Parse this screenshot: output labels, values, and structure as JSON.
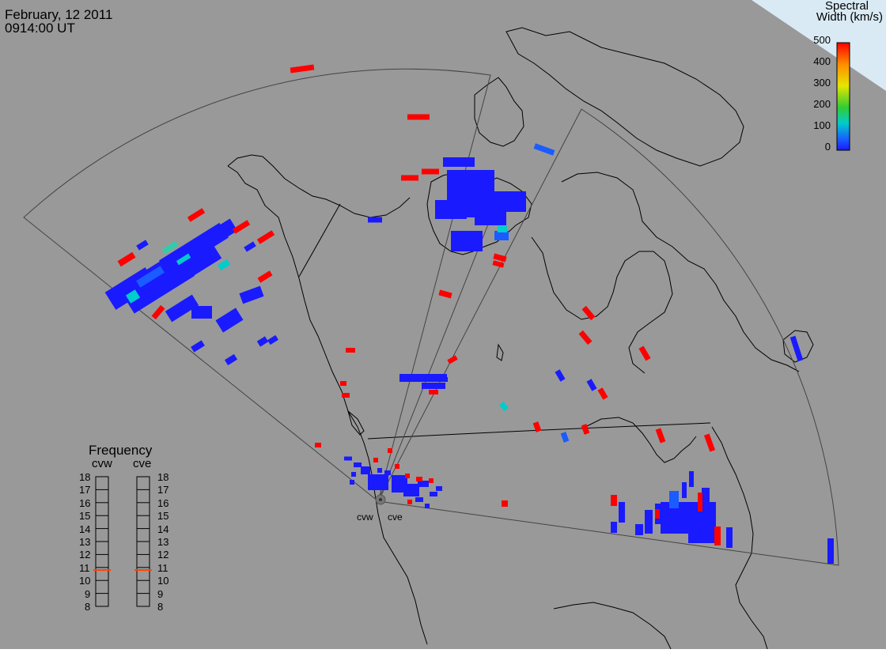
{
  "header": {
    "date": "February, 12 2011",
    "time": "0914:00 UT"
  },
  "colorbar": {
    "title_line1": "Spectral",
    "title_line2": "Width (km/s)",
    "ticks": [
      "500",
      "400",
      "300",
      "200",
      "100",
      "0"
    ],
    "colors": [
      "#ff0000",
      "#ff8c00",
      "#e6e600",
      "#33cc33",
      "#00cccc",
      "#1a5cff",
      "#1a1aff"
    ]
  },
  "frequency": {
    "title": "Frequency",
    "radars": [
      "cvw",
      "cve"
    ],
    "scale": [
      "18",
      "17",
      "16",
      "15",
      "14",
      "13",
      "12",
      "11",
      "10",
      "9",
      "8"
    ],
    "values_mhz": [
      10.8,
      10.8
    ],
    "marker_color": "#ff4500"
  },
  "sites": {
    "west": "cvw",
    "east": "cve"
  },
  "colors": {
    "background": "#999999",
    "high": "#ff0000",
    "low": "#1a1aff",
    "mid": "#1a5cff",
    "cyan": "#00cccc",
    "teal": "#33ccaa"
  }
}
